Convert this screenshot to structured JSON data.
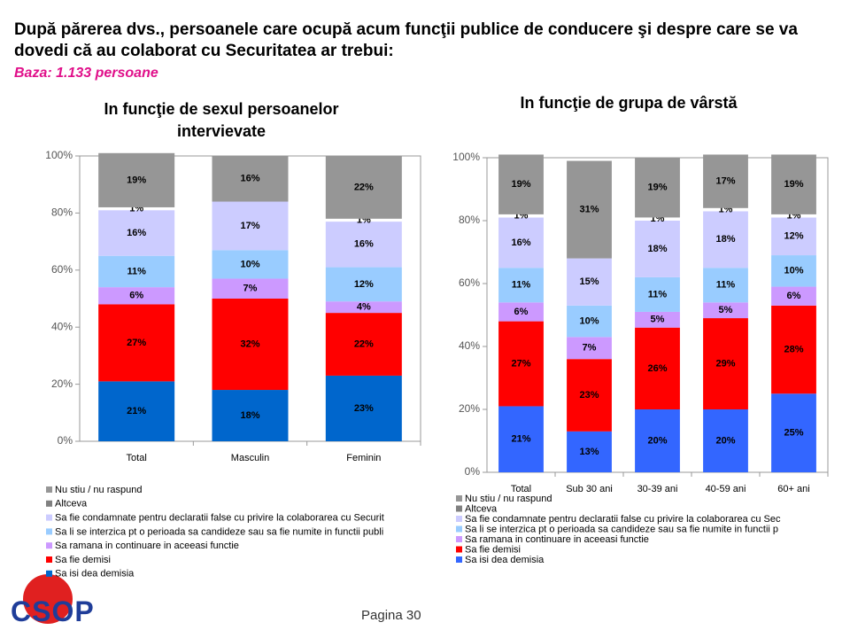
{
  "header": {
    "title": "După părerea dvs., persoanele care ocupă acum funcţii publice de conducere şi despre care se va dovedi că au colaborat cu Securitatea ar trebui:",
    "base": "Baza: 1.133 persoane"
  },
  "footer": {
    "page": "Pagina 30",
    "logo": "CSOP"
  },
  "chart_data": [
    {
      "type": "bar",
      "stacked": true,
      "title": "In funcţie de sexul persoanelor intervievate",
      "categories": [
        "Total",
        "Masculin",
        "Feminin"
      ],
      "ylim": [
        0,
        100
      ],
      "yticks": [
        {
          "value": 0,
          "label": "0%"
        },
        {
          "value": 20,
          "label": "20%"
        },
        {
          "value": 40,
          "label": "40%"
        },
        {
          "value": 60,
          "label": "60%"
        },
        {
          "value": 80,
          "label": "80%"
        },
        {
          "value": 100,
          "label": "100%"
        }
      ],
      "series": [
        {
          "name": "Sa isi dea demisia",
          "color": "#0066cc",
          "values": [
            21,
            18,
            23
          ],
          "value_labels": [
            "21%",
            "18%",
            "23%"
          ]
        },
        {
          "name": "Sa fie demisi",
          "color": "#ff0000",
          "values": [
            27,
            32,
            22
          ],
          "value_labels": [
            "27%",
            "32%",
            "22%"
          ]
        },
        {
          "name": "Sa ramana in continuare in aceeasi functie",
          "color": "#cc99ff",
          "values": [
            6,
            7,
            4
          ],
          "value_labels": [
            "6%",
            "7%",
            "4%"
          ]
        },
        {
          "name": "Sa li se interzica pt o perioada sa candideze sau sa fie numite in functii publi",
          "color": "#99ccff",
          "values": [
            11,
            10,
            12
          ],
          "value_labels": [
            "11%",
            "10%",
            "12%"
          ]
        },
        {
          "name": "Sa fie condamnate pentru declaratii false cu privire la colaborarea cu Securit",
          "color": "#ccccff",
          "values": [
            16,
            17,
            16
          ],
          "value_labels": [
            "16%",
            "17%",
            "16%"
          ]
        },
        {
          "name": "Altceva",
          "color": "#ffffff",
          "values": [
            1,
            null,
            1
          ],
          "value_labels": [
            "1%",
            null,
            "1%"
          ]
        },
        {
          "name": "Nu stiu / nu raspund",
          "color": "#969696",
          "values": [
            19,
            16,
            22
          ],
          "value_labels": [
            "19%",
            "16%",
            "22%"
          ]
        }
      ]
    },
    {
      "type": "bar",
      "stacked": true,
      "title": "In funcţie de grupa de vârstă",
      "categories": [
        "Total",
        "Sub 30 ani",
        "30-39 ani",
        "40-59 ani",
        "60+ ani"
      ],
      "ylim": [
        0,
        100
      ],
      "yticks": [
        {
          "value": 0,
          "label": "0%"
        },
        {
          "value": 20,
          "label": "20%"
        },
        {
          "value": 40,
          "label": "40%"
        },
        {
          "value": 60,
          "label": "60%"
        },
        {
          "value": 80,
          "label": "80%"
        },
        {
          "value": 100,
          "label": "100%"
        }
      ],
      "series": [
        {
          "name": "Sa isi dea demisia",
          "color": "#3366ff",
          "values": [
            21,
            13,
            20,
            20,
            25
          ],
          "value_labels": [
            "21%",
            "13%",
            "20%",
            "20%",
            "25%"
          ]
        },
        {
          "name": "Sa fie demisi",
          "color": "#ff0000",
          "values": [
            27,
            23,
            26,
            29,
            28
          ],
          "value_labels": [
            "27%",
            "23%",
            "26%",
            "29%",
            "28%"
          ]
        },
        {
          "name": "Sa ramana in continuare in aceeasi functie",
          "color": "#cc99ff",
          "values": [
            6,
            7,
            5,
            5,
            6
          ],
          "value_labels": [
            "6%",
            "7%",
            "5%",
            "5%",
            "6%"
          ]
        },
        {
          "name": "Sa li se interzica pt o perioada sa candideze sau sa fie numite in functii p",
          "color": "#99ccff",
          "values": [
            11,
            10,
            11,
            11,
            10
          ],
          "value_labels": [
            "11%",
            "10%",
            "11%",
            "11%",
            "10%"
          ]
        },
        {
          "name": "Sa fie condamnate pentru declaratii false cu privire la colaborarea cu Sec",
          "color": "#ccccff",
          "values": [
            16,
            15,
            18,
            18,
            12
          ],
          "value_labels": [
            "16%",
            "15%",
            "18%",
            "18%",
            "12%"
          ]
        },
        {
          "name": "Altceva",
          "color": "#ffffff",
          "values": [
            1,
            null,
            1,
            1,
            1
          ],
          "value_labels": [
            "1%",
            null,
            "1%",
            "1%",
            "1%"
          ]
        },
        {
          "name": "Nu stiu / nu raspund",
          "color": "#969696",
          "values": [
            19,
            31,
            19,
            17,
            19
          ],
          "value_labels": [
            "19%",
            "31%",
            "19%",
            "17%",
            "19%"
          ]
        }
      ]
    }
  ]
}
